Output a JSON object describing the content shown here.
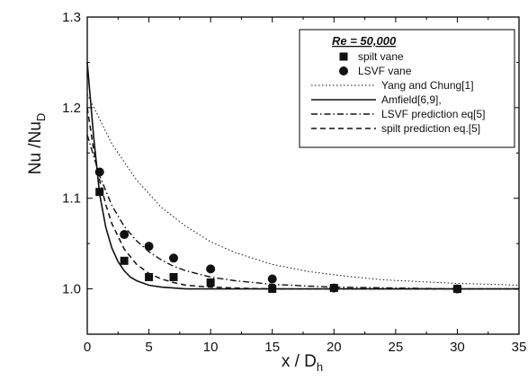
{
  "chart_data": {
    "type": "scatter",
    "xlabel": "x / D",
    "xlabel_sub": "h",
    "ylabel": "Nu /Nu",
    "ylabel_sub": "D",
    "xlim": [
      0,
      35
    ],
    "ylim": [
      0.95,
      1.3
    ],
    "x_ticks": [
      "0",
      "5",
      "10",
      "15",
      "20",
      "25",
      "30",
      "35"
    ],
    "y_ticks": [
      "1.0",
      "1.1",
      "1.2",
      "1.3"
    ],
    "grid": false,
    "legend_position": "top-right",
    "legend_title": "Re = 50,000",
    "series": [
      {
        "name": "spilt vane",
        "kind": "markers",
        "marker": "square",
        "x": [
          1,
          3,
          5,
          7,
          10,
          15,
          20,
          30
        ],
        "y": [
          1.107,
          1.031,
          1.013,
          1.013,
          1.007,
          1.0,
          1.001,
          1.0
        ]
      },
      {
        "name": "LSVF vane",
        "kind": "markers",
        "marker": "circle",
        "x": [
          1,
          3,
          5,
          7,
          10,
          15,
          20,
          30
        ],
        "y": [
          1.129,
          1.06,
          1.047,
          1.034,
          1.022,
          1.011,
          1.001,
          1.0
        ]
      },
      {
        "name": "Yang and Chung[1]",
        "kind": "line",
        "dash": "dotted",
        "x": [
          0,
          2,
          4,
          6,
          8,
          10,
          12,
          15,
          18,
          21,
          24,
          27,
          30,
          33,
          35
        ],
        "y": [
          1.215,
          1.16,
          1.12,
          1.09,
          1.069,
          1.052,
          1.04,
          1.027,
          1.019,
          1.014,
          1.01,
          1.008,
          1.006,
          1.005,
          1.004
        ]
      },
      {
        "name": "Amfield[6,9],",
        "kind": "line",
        "dash": "solid",
        "x": [
          0,
          0.5,
          1,
          1.5,
          2,
          2.5,
          3,
          3.5,
          4,
          5,
          6,
          8,
          10,
          15,
          20,
          30,
          35
        ],
        "y": [
          1.25,
          1.17,
          1.105,
          1.068,
          1.045,
          1.03,
          1.02,
          1.013,
          1.009,
          1.004,
          1.002,
          1.0,
          1.0,
          1.0,
          1.0,
          1.0,
          1.0
        ]
      },
      {
        "name": "LSVF prediction eq[5]",
        "kind": "line",
        "dash": "dashdot",
        "x": [
          0,
          1,
          2,
          3,
          4,
          5,
          6,
          7,
          8,
          10,
          12,
          15,
          18,
          20,
          25,
          30,
          35
        ],
        "y": [
          1.17,
          1.125,
          1.092,
          1.069,
          1.053,
          1.041,
          1.032,
          1.025,
          1.02,
          1.013,
          1.009,
          1.005,
          1.003,
          1.002,
          1.001,
          1.0,
          1.0
        ]
      },
      {
        "name": "spilt prediction eq.[5]",
        "kind": "line",
        "dash": "dashed",
        "x": [
          0,
          0.5,
          1,
          1.5,
          2,
          3,
          4,
          5,
          6,
          7,
          8,
          10,
          12,
          15,
          20,
          30,
          35
        ],
        "y": [
          1.2,
          1.155,
          1.12,
          1.093,
          1.072,
          1.044,
          1.027,
          1.017,
          1.011,
          1.007,
          1.004,
          1.002,
          1.001,
          1.0,
          1.0,
          1.0,
          1.0
        ]
      }
    ]
  }
}
